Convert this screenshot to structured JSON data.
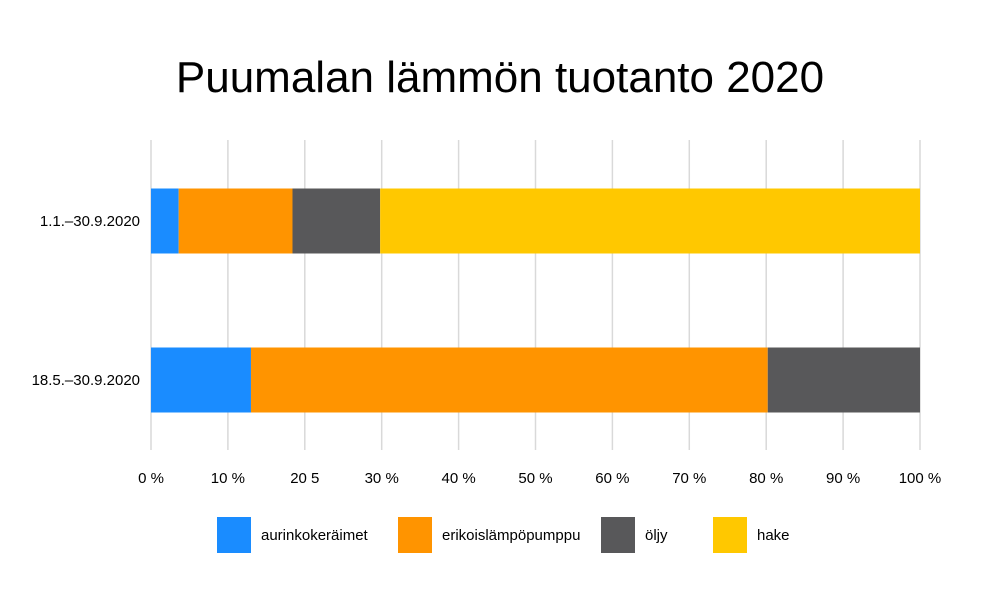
{
  "chart_data": {
    "type": "bar",
    "orientation": "horizontal",
    "stacked": true,
    "title": "Puumalan lämmön tuotanto 2020",
    "categories": [
      "1.1.–30.9.2020",
      "18.5.–30.9.2020"
    ],
    "series": [
      {
        "name": "aurinkokeräimet",
        "color": "#1a8cff",
        "values": [
          3.6,
          13.0
        ]
      },
      {
        "name": "erikoislämpöpumppu",
        "color": "#ff9400",
        "values": [
          14.8,
          67.2
        ]
      },
      {
        "name": "öljy",
        "color": "#58585a",
        "values": [
          11.4,
          19.8
        ]
      },
      {
        "name": "hake",
        "color": "#ffc800",
        "values": [
          70.2,
          0
        ]
      }
    ],
    "xlim": [
      0,
      100
    ],
    "x_tick_labels": [
      "0 %",
      "10 %",
      "20 5",
      "30 %",
      "40 %",
      "50 %",
      "60 %",
      "70 %",
      "80 %",
      "90 %",
      "100 %"
    ],
    "grid": true,
    "gridline_color": "#d9d9d9",
    "legend_position": "bottom"
  }
}
